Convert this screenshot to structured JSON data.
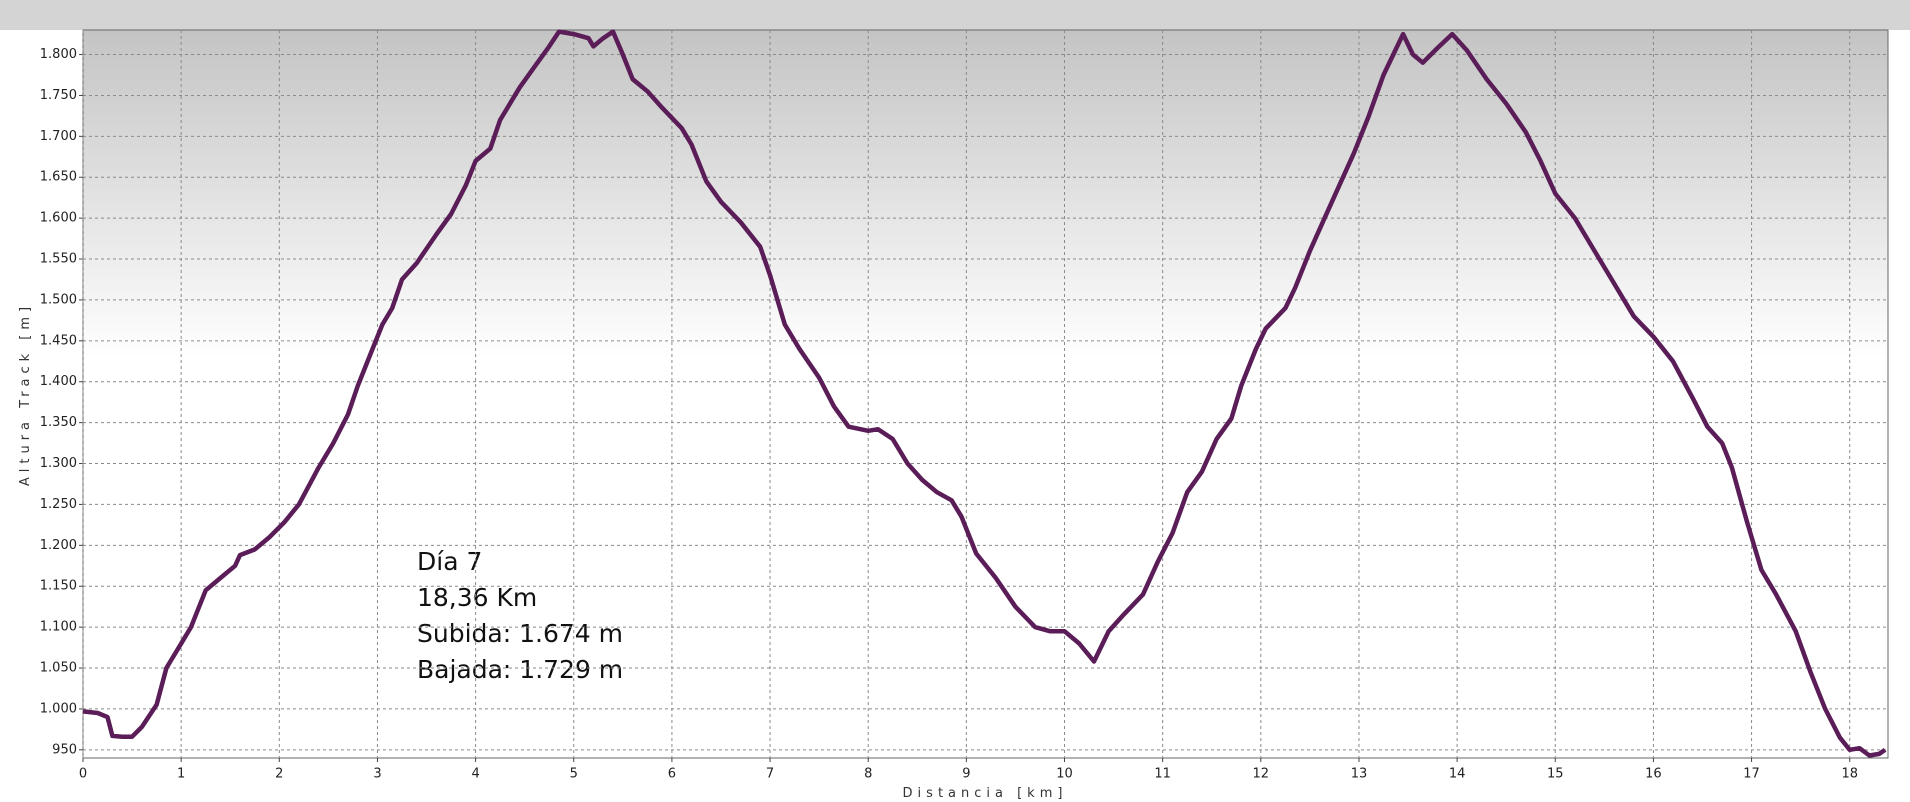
{
  "chart_data": {
    "type": "line",
    "ylabel": "Altura Track [m]",
    "xlabel": "Distancia [km]",
    "annotations": [
      "Día 7",
      "18,36 Km",
      "Subida: 1.674 m",
      "Bajada: 1.729 m"
    ],
    "x": [
      0,
      0.15,
      0.25,
      0.3,
      0.4,
      0.5,
      0.6,
      0.75,
      0.85,
      1.0,
      1.1,
      1.25,
      1.4,
      1.55,
      1.6,
      1.75,
      1.9,
      2.05,
      2.2,
      2.4,
      2.55,
      2.7,
      2.8,
      2.95,
      3.05,
      3.15,
      3.25,
      3.4,
      3.6,
      3.75,
      3.9,
      4.0,
      4.15,
      4.25,
      4.45,
      4.6,
      4.75,
      4.85,
      5.0,
      5.15,
      5.2,
      5.3,
      5.4,
      5.5,
      5.6,
      5.75,
      5.9,
      6.1,
      6.2,
      6.35,
      6.5,
      6.7,
      6.9,
      7.0,
      7.15,
      7.3,
      7.5,
      7.65,
      7.8,
      8.0,
      8.1,
      8.25,
      8.4,
      8.55,
      8.7,
      8.85,
      8.95,
      9.1,
      9.3,
      9.5,
      9.7,
      9.85,
      10.0,
      10.15,
      10.3,
      10.45,
      10.6,
      10.8,
      10.95,
      11.1,
      11.25,
      11.4,
      11.55,
      11.7,
      11.8,
      11.95,
      12.05,
      12.25,
      12.35,
      12.5,
      12.65,
      12.8,
      12.95,
      13.1,
      13.25,
      13.45,
      13.55,
      13.65,
      13.8,
      13.95,
      14.1,
      14.3,
      14.5,
      14.7,
      14.85,
      15.0,
      15.2,
      15.4,
      15.6,
      15.8,
      16.0,
      16.2,
      16.4,
      16.55,
      16.7,
      16.8,
      16.95,
      17.1,
      17.25,
      17.45,
      17.6,
      17.75,
      17.9,
      18.0,
      18.1,
      18.2,
      18.3,
      18.36
    ],
    "values": [
      997,
      995,
      990,
      967,
      966,
      966,
      978,
      1005,
      1050,
      1080,
      1100,
      1145,
      1160,
      1175,
      1188,
      1195,
      1210,
      1228,
      1250,
      1295,
      1325,
      1360,
      1395,
      1440,
      1470,
      1490,
      1525,
      1545,
      1580,
      1605,
      1640,
      1670,
      1685,
      1720,
      1760,
      1785,
      1810,
      1828,
      1825,
      1820,
      1810,
      1820,
      1828,
      1800,
      1770,
      1755,
      1735,
      1710,
      1690,
      1645,
      1620,
      1595,
      1565,
      1530,
      1470,
      1440,
      1405,
      1370,
      1345,
      1340,
      1342,
      1330,
      1300,
      1280,
      1265,
      1255,
      1235,
      1190,
      1160,
      1125,
      1100,
      1095,
      1095,
      1080,
      1058,
      1095,
      1115,
      1140,
      1180,
      1215,
      1265,
      1290,
      1330,
      1355,
      1395,
      1440,
      1465,
      1490,
      1515,
      1560,
      1600,
      1640,
      1680,
      1725,
      1775,
      1825,
      1800,
      1790,
      1808,
      1825,
      1805,
      1770,
      1740,
      1705,
      1670,
      1630,
      1600,
      1560,
      1520,
      1480,
      1455,
      1425,
      1380,
      1345,
      1325,
      1295,
      1230,
      1170,
      1140,
      1095,
      1045,
      1000,
      965,
      950,
      952,
      943,
      945,
      950
    ],
    "color": "#5a1d58",
    "xlim": [
      0,
      18.39
    ],
    "ylim": [
      940,
      1830
    ],
    "xticks": [
      0,
      1,
      2,
      3,
      4,
      5,
      6,
      7,
      8,
      9,
      10,
      11,
      12,
      13,
      14,
      15,
      16,
      17,
      18
    ],
    "yticks": [
      950,
      {
        "value": 1000,
        "label": "1.000"
      },
      {
        "value": 1050,
        "label": "1.050"
      },
      {
        "value": 1100,
        "label": "1.100"
      },
      {
        "value": 1150,
        "label": "1.150"
      },
      {
        "value": 1200,
        "label": "1.200"
      },
      {
        "value": 1250,
        "label": "1.250"
      },
      {
        "value": 1300,
        "label": "1.300"
      },
      {
        "value": 1350,
        "label": "1.350"
      },
      {
        "value": 1400,
        "label": "1.400"
      },
      {
        "value": 1450,
        "label": "1.450"
      },
      {
        "value": 1500,
        "label": "1.500"
      },
      {
        "value": 1550,
        "label": "1.550"
      },
      {
        "value": 1600,
        "label": "1.600"
      },
      {
        "value": 1650,
        "label": "1.650"
      },
      {
        "value": 1700,
        "label": "1.700"
      },
      {
        "value": 1750,
        "label": "1.750"
      },
      {
        "value": 1800,
        "label": "1.800"
      }
    ],
    "grid": true
  }
}
